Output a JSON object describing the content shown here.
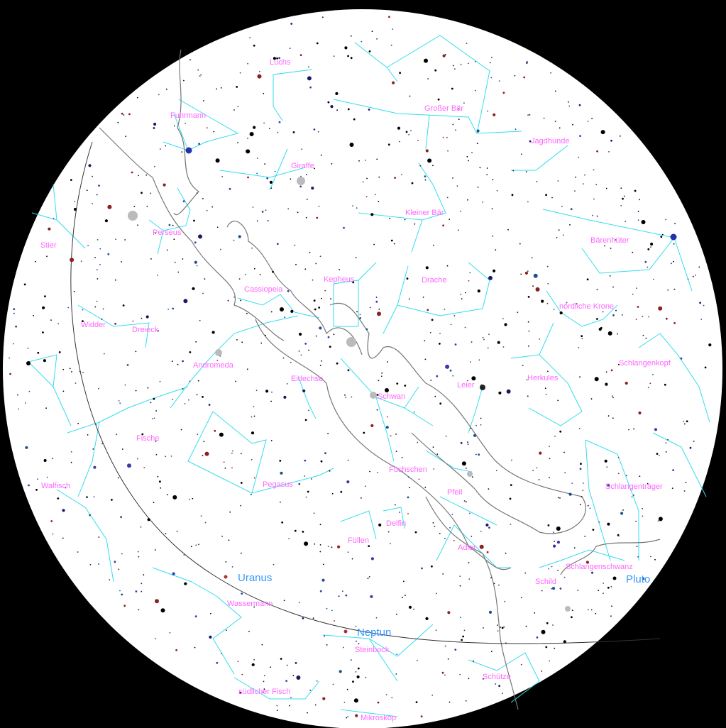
{
  "constellations": [
    {
      "name": "Luchs"
    },
    {
      "name": "Großer Bär"
    },
    {
      "name": "Fuhrmann"
    },
    {
      "name": "Jagdhunde"
    },
    {
      "name": "Giraffe"
    },
    {
      "name": "Kleiner Bär"
    },
    {
      "name": "Perseus"
    },
    {
      "name": "Stier"
    },
    {
      "name": "Bärenhüter"
    },
    {
      "name": "Kepheus"
    },
    {
      "name": "Cassiopeia"
    },
    {
      "name": "Drache"
    },
    {
      "name": "nördliche Krone"
    },
    {
      "name": "Widder"
    },
    {
      "name": "Dreieck"
    },
    {
      "name": "Andromeda"
    },
    {
      "name": "Eidechse"
    },
    {
      "name": "Schwan"
    },
    {
      "name": "Leier"
    },
    {
      "name": "Herkules"
    },
    {
      "name": "Schlangenkopf"
    },
    {
      "name": "Fische"
    },
    {
      "name": "Füchschen"
    },
    {
      "name": "Walfisch"
    },
    {
      "name": "Pegasus"
    },
    {
      "name": "Pfeil"
    },
    {
      "name": "Schlangenträger"
    },
    {
      "name": "Delfin"
    },
    {
      "name": "Füllen"
    },
    {
      "name": "Adler"
    },
    {
      "name": "Schlangenschwanz"
    },
    {
      "name": "Schild"
    },
    {
      "name": "Wassermann"
    },
    {
      "name": "Steinbock"
    },
    {
      "name": "Schütze"
    },
    {
      "name": "südlicher Fisch"
    },
    {
      "name": "Mikroskop"
    }
  ],
  "planets": [
    {
      "name": "Uranus",
      "color": "#aa3333"
    },
    {
      "name": "Neptun",
      "color": "#aa3333"
    },
    {
      "name": "Pluto",
      "color": "#000000"
    }
  ],
  "colors": {
    "background": "#000000",
    "sky": "#ffffff",
    "constellation_lines": "#33ddee",
    "constellation_names": "#ff66ff",
    "planet_names": "#3399ff",
    "milky_way": "#777777"
  }
}
